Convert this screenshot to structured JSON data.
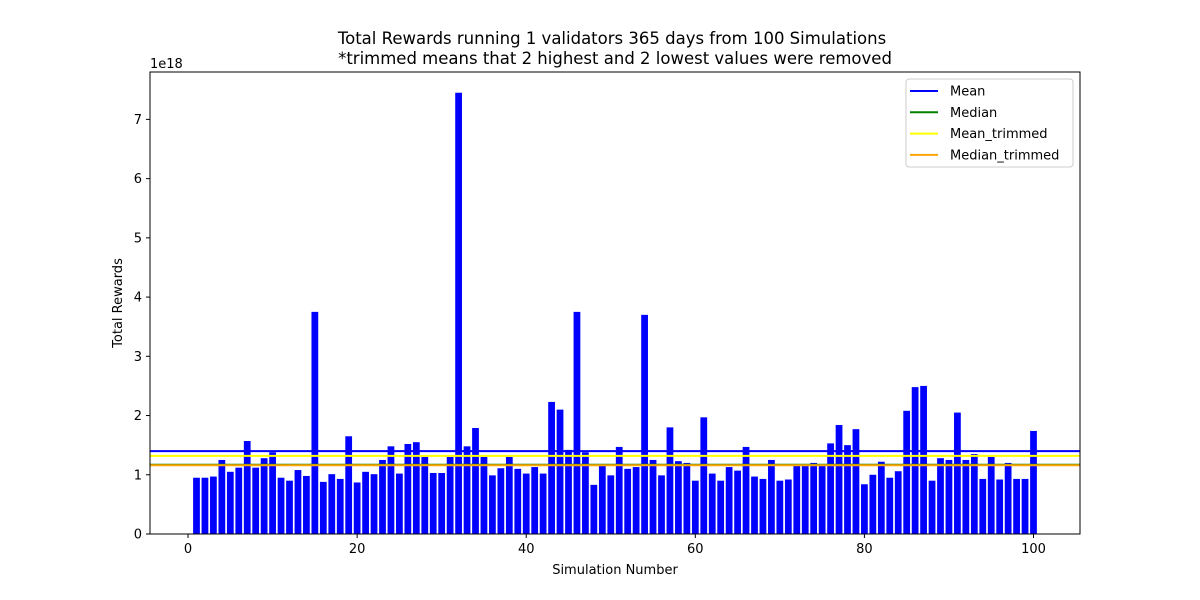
{
  "chart_data": {
    "type": "bar",
    "title": "Total Rewards running 1 validators 365 days from 100 Simulations",
    "subtitle": "*trimmed means that 2 highest and 2 lowest values were removed",
    "xlabel": "Simulation Number",
    "ylabel": "Total Rewards",
    "y_scale_label": "1e18",
    "xlim": [
      -4.5,
      105.5
    ],
    "ylim": [
      0,
      7.8
    ],
    "x_ticks": [
      0,
      20,
      40,
      60,
      80,
      100
    ],
    "y_ticks": [
      0,
      1,
      2,
      3,
      4,
      5,
      6,
      7
    ],
    "grid": false,
    "legend_position": "top-right",
    "bar_color": "#0000ff",
    "x": [
      1,
      2,
      3,
      4,
      5,
      6,
      7,
      8,
      9,
      10,
      11,
      12,
      13,
      14,
      15,
      16,
      17,
      18,
      19,
      20,
      21,
      22,
      23,
      24,
      25,
      26,
      27,
      28,
      29,
      30,
      31,
      32,
      33,
      34,
      35,
      36,
      37,
      38,
      39,
      40,
      41,
      42,
      43,
      44,
      45,
      46,
      47,
      48,
      49,
      50,
      51,
      52,
      53,
      54,
      55,
      56,
      57,
      58,
      59,
      60,
      61,
      62,
      63,
      64,
      65,
      66,
      67,
      68,
      69,
      70,
      71,
      72,
      73,
      74,
      75,
      76,
      77,
      78,
      79,
      80,
      81,
      82,
      83,
      84,
      85,
      86,
      87,
      88,
      89,
      90,
      91,
      92,
      93,
      94,
      95,
      96,
      97,
      98,
      99,
      100
    ],
    "values": [
      0.95,
      0.95,
      0.97,
      1.25,
      1.05,
      1.12,
      1.57,
      1.12,
      1.28,
      1.38,
      0.95,
      0.9,
      1.08,
      0.98,
      3.75,
      0.88,
      1.01,
      0.93,
      1.65,
      0.87,
      1.05,
      1.01,
      1.25,
      1.48,
      1.02,
      1.52,
      1.55,
      1.3,
      1.03,
      1.03,
      1.3,
      7.45,
      1.48,
      1.79,
      1.3,
      0.99,
      1.11,
      1.3,
      1.1,
      1.02,
      1.13,
      1.02,
      2.23,
      2.1,
      1.42,
      3.75,
      1.38,
      0.83,
      1.17,
      0.99,
      1.47,
      1.1,
      1.13,
      3.7,
      1.25,
      0.99,
      1.8,
      1.23,
      1.2,
      0.9,
      1.97,
      1.02,
      0.9,
      1.13,
      1.07,
      1.47,
      0.97,
      0.93,
      1.25,
      0.9,
      0.92,
      1.15,
      1.18,
      1.2,
      1.17,
      1.53,
      1.84,
      1.5,
      1.77,
      0.84,
      1.0,
      1.22,
      0.95,
      1.06,
      2.08,
      2.48,
      2.5,
      0.9,
      1.28,
      1.25,
      2.05,
      1.25,
      1.35,
      0.93,
      1.3,
      0.92,
      1.2,
      0.93,
      0.93,
      1.74
    ],
    "reference_lines": [
      {
        "name": "Mean",
        "value": 1.4,
        "color": "#0000ff"
      },
      {
        "name": "Median",
        "value": 1.17,
        "color": "#008000"
      },
      {
        "name": "Mean_trimmed",
        "value": 1.32,
        "color": "#ffff00"
      },
      {
        "name": "Median_trimmed",
        "value": 1.16,
        "color": "#ffa500"
      }
    ]
  }
}
